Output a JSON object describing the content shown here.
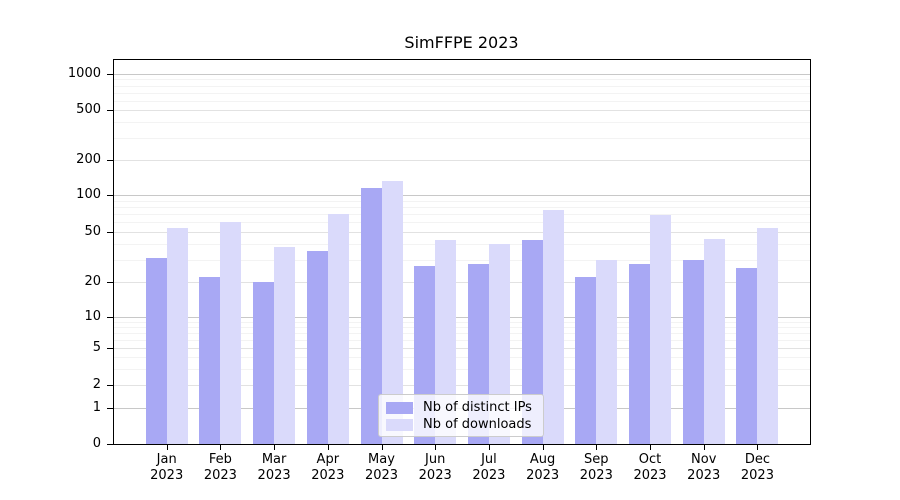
{
  "title": "SimFFPE 2023",
  "chart_data": {
    "type": "bar",
    "title": "SimFFPE 2023",
    "x_tick_months": [
      "Jan",
      "Feb",
      "Mar",
      "Apr",
      "May",
      "Jun",
      "Jul",
      "Aug",
      "Sep",
      "Oct",
      "Nov",
      "Dec"
    ],
    "x_tick_year": "2023",
    "series": [
      {
        "name": "Nb of distinct IPs",
        "color": "#a8a8f4",
        "values": [
          31,
          22,
          20,
          35,
          115,
          27,
          28,
          43,
          22,
          28,
          30,
          26
        ]
      },
      {
        "name": "Nb of downloads",
        "color": "#dadafb",
        "values": [
          54,
          60,
          38,
          70,
          132,
          43,
          40,
          76,
          30,
          69,
          44,
          54
        ]
      }
    ],
    "y_ticks": [
      0,
      1,
      2,
      5,
      10,
      20,
      50,
      100,
      200,
      500,
      1000
    ],
    "y_minor_gridlines": [
      3,
      4,
      6,
      7,
      8,
      9,
      30,
      40,
      60,
      70,
      80,
      90,
      300,
      400,
      600,
      700,
      800,
      900
    ],
    "y_scale": "symlog",
    "ylim": [
      0,
      1500
    ],
    "grid": true,
    "legend_position": "lower center",
    "grid_colors": {
      "decade": "#c8c8c8",
      "labeled": "#e2e2e2",
      "minor": "#f3f3f3"
    }
  }
}
